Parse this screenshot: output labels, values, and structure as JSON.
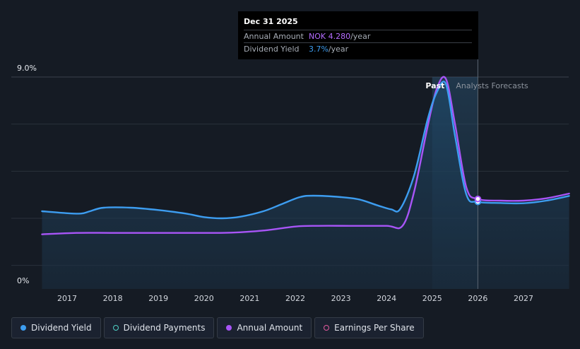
{
  "chart_data": {
    "type": "line",
    "y_axis": {
      "ticks": [
        "9.0%",
        "0%"
      ],
      "ylim": [
        0,
        9.0
      ],
      "grid": true
    },
    "x_axis": {
      "ticks": [
        "2017",
        "2018",
        "2019",
        "2020",
        "2021",
        "2022",
        "2023",
        "2024",
        "2025",
        "2026",
        "2027"
      ],
      "xlim": [
        2016.3,
        2028.0
      ]
    },
    "regions": {
      "past_label": "Past",
      "forecast_label": "Analysts Forecasts",
      "past_end": 2026.0
    },
    "series": [
      {
        "name": "Dividend Yield",
        "color": "#3d9df0",
        "area": true,
        "points": [
          [
            2016.45,
            3.3
          ],
          [
            2016.9,
            3.23
          ],
          [
            2017.3,
            3.2
          ],
          [
            2017.5,
            3.3
          ],
          [
            2017.8,
            3.45
          ],
          [
            2018.4,
            3.45
          ],
          [
            2019.0,
            3.35
          ],
          [
            2019.6,
            3.2
          ],
          [
            2020.0,
            3.05
          ],
          [
            2020.4,
            3.0
          ],
          [
            2020.8,
            3.07
          ],
          [
            2021.3,
            3.3
          ],
          [
            2021.7,
            3.6
          ],
          [
            2022.1,
            3.9
          ],
          [
            2022.4,
            3.96
          ],
          [
            2023.0,
            3.9
          ],
          [
            2023.4,
            3.8
          ],
          [
            2023.8,
            3.55
          ],
          [
            2024.1,
            3.38
          ],
          [
            2024.3,
            3.4
          ],
          [
            2024.6,
            4.8
          ],
          [
            2024.9,
            7.2
          ],
          [
            2025.1,
            8.35
          ],
          [
            2025.3,
            8.7
          ],
          [
            2025.5,
            6.5
          ],
          [
            2025.75,
            4.0
          ],
          [
            2026.0,
            3.7
          ],
          [
            2026.5,
            3.65
          ],
          [
            2027.0,
            3.64
          ],
          [
            2027.5,
            3.75
          ],
          [
            2028.0,
            3.95
          ]
        ]
      },
      {
        "name": "Annual Amount",
        "color": "#a855f7",
        "area": false,
        "points": [
          [
            2016.45,
            2.32
          ],
          [
            2017.2,
            2.38
          ],
          [
            2018.0,
            2.38
          ],
          [
            2019.0,
            2.38
          ],
          [
            2020.0,
            2.38
          ],
          [
            2020.6,
            2.39
          ],
          [
            2021.3,
            2.48
          ],
          [
            2022.0,
            2.65
          ],
          [
            2022.5,
            2.68
          ],
          [
            2023.2,
            2.68
          ],
          [
            2024.0,
            2.68
          ],
          [
            2024.35,
            2.68
          ],
          [
            2024.6,
            4.1
          ],
          [
            2024.9,
            6.9
          ],
          [
            2025.1,
            8.5
          ],
          [
            2025.3,
            8.92
          ],
          [
            2025.5,
            7.0
          ],
          [
            2025.75,
            4.3
          ],
          [
            2026.0,
            3.82
          ],
          [
            2026.5,
            3.75
          ],
          [
            2027.0,
            3.75
          ],
          [
            2027.5,
            3.85
          ],
          [
            2028.0,
            4.05
          ]
        ]
      }
    ],
    "highlight_x": 2026.0
  },
  "tooltip": {
    "date": "Dec 31 2025",
    "rows": [
      {
        "label": "Annual Amount",
        "value": "NOK 4.280",
        "unit": "/year"
      },
      {
        "label": "Dividend Yield",
        "value": "3.7%",
        "unit": "/year"
      }
    ]
  },
  "legend": [
    {
      "label": "Dividend Yield",
      "color": "#3d9df0",
      "filled": true
    },
    {
      "label": "Dividend Payments",
      "color": "#4fd1c5",
      "filled": false
    },
    {
      "label": "Annual Amount",
      "color": "#a855f7",
      "filled": true
    },
    {
      "label": "Earnings Per Share",
      "color": "#e25a9e",
      "filled": false
    }
  ]
}
